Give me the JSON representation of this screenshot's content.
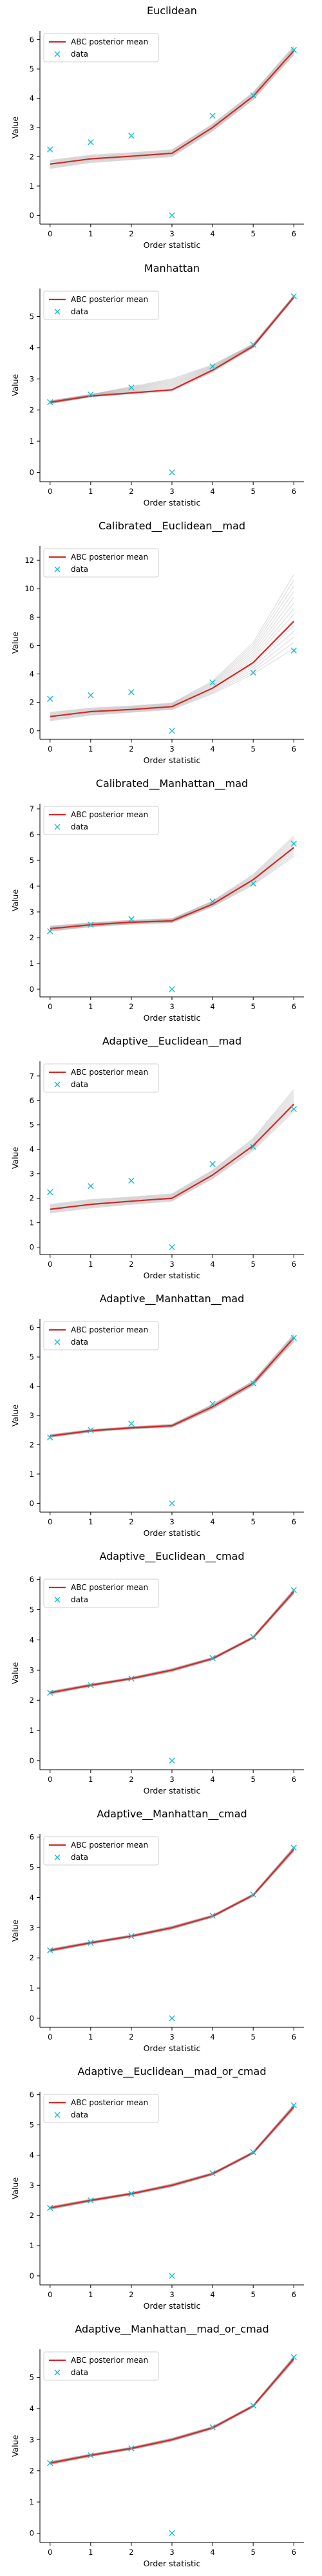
{
  "colors": {
    "posterior": "#d62728",
    "data": "#17becf",
    "samples": "#7f7f7f"
  },
  "legend": {
    "posterior_label": "ABC posterior mean",
    "data_label": "data"
  },
  "chart_data": [
    {
      "type": "line",
      "title": "Euclidean",
      "xlabel": "Order statistic",
      "ylabel": "Value",
      "x": [
        0,
        1,
        2,
        3,
        4,
        5,
        6
      ],
      "xticks": [
        "0",
        "1",
        "2",
        "3",
        "4",
        "5",
        "6"
      ],
      "yticks": [
        "0",
        "1",
        "2",
        "3",
        "4",
        "5",
        "6"
      ],
      "ylim": [
        -0.3,
        6.3
      ],
      "legend_position": "top-left",
      "grid": false,
      "series": [
        {
          "name": "ABC posterior mean",
          "kind": "line",
          "values": [
            1.75,
            1.93,
            2.02,
            2.12,
            3.0,
            4.07,
            5.62
          ]
        },
        {
          "name": "data",
          "kind": "marker",
          "values": [
            2.25,
            2.5,
            2.72,
            0.0,
            3.4,
            4.1,
            5.65
          ]
        }
      ],
      "band": {
        "lower": [
          1.6,
          1.8,
          1.9,
          2.0,
          2.88,
          3.95,
          5.48
        ],
        "upper": [
          1.88,
          2.06,
          2.14,
          2.24,
          3.12,
          4.2,
          5.78
        ]
      }
    },
    {
      "type": "line",
      "title": "Manhattan",
      "xlabel": "Order statistic",
      "ylabel": "Value",
      "x": [
        0,
        1,
        2,
        3,
        4,
        5,
        6
      ],
      "xticks": [
        "0",
        "1",
        "2",
        "3",
        "4",
        "5",
        "6"
      ],
      "yticks": [
        "0",
        "1",
        "2",
        "3",
        "4",
        "5"
      ],
      "ylim": [
        -0.3,
        5.9
      ],
      "legend_position": "top-left",
      "grid": false,
      "series": [
        {
          "name": "ABC posterior mean",
          "kind": "line",
          "values": [
            2.25,
            2.45,
            2.55,
            2.65,
            3.28,
            4.05,
            5.62
          ]
        },
        {
          "name": "data",
          "kind": "marker",
          "values": [
            2.25,
            2.5,
            2.72,
            0.0,
            3.4,
            4.1,
            5.65
          ]
        }
      ],
      "band": {
        "lower": [
          2.2,
          2.42,
          2.52,
          2.6,
          3.22,
          4.0,
          5.58
        ],
        "upper": [
          2.3,
          2.5,
          2.75,
          3.0,
          3.45,
          4.12,
          5.68
        ]
      }
    },
    {
      "type": "line",
      "title": "Calibrated__Euclidean__mad",
      "xlabel": "Order statistic",
      "ylabel": "Value",
      "x": [
        0,
        1,
        2,
        3,
        4,
        5,
        6
      ],
      "xticks": [
        "0",
        "1",
        "2",
        "3",
        "4",
        "5",
        "6"
      ],
      "yticks": [
        "0",
        "2",
        "4",
        "6",
        "8",
        "10",
        "12"
      ],
      "ylim": [
        -0.6,
        13.0
      ],
      "legend_position": "top-left",
      "grid": false,
      "series": [
        {
          "name": "ABC posterior mean",
          "kind": "line",
          "values": [
            1.0,
            1.35,
            1.5,
            1.7,
            3.0,
            4.8,
            7.7
          ]
        },
        {
          "name": "data",
          "kind": "marker",
          "values": [
            2.25,
            2.5,
            2.72,
            0.0,
            3.4,
            4.1,
            5.65
          ]
        }
      ],
      "band": {
        "lower": [
          0.7,
          1.1,
          1.3,
          1.5,
          2.6,
          4.0,
          5.8
        ],
        "upper": [
          1.3,
          1.6,
          1.75,
          1.95,
          3.5,
          6.2,
          11.0
        ]
      }
    },
    {
      "type": "line",
      "title": "Calibrated__Manhattan__mad",
      "xlabel": "Order statistic",
      "ylabel": "Value",
      "x": [
        0,
        1,
        2,
        3,
        4,
        5,
        6
      ],
      "xticks": [
        "0",
        "1",
        "2",
        "3",
        "4",
        "5",
        "6"
      ],
      "yticks": [
        "0",
        "1",
        "2",
        "3",
        "4",
        "5",
        "6",
        "7"
      ],
      "ylim": [
        -0.3,
        7.2
      ],
      "legend_position": "top-left",
      "grid": false,
      "series": [
        {
          "name": "ABC posterior mean",
          "kind": "line",
          "values": [
            2.35,
            2.5,
            2.6,
            2.65,
            3.3,
            4.25,
            5.5
          ]
        },
        {
          "name": "data",
          "kind": "marker",
          "values": [
            2.25,
            2.5,
            2.72,
            0.0,
            3.4,
            4.1,
            5.65
          ]
        }
      ],
      "band": {
        "lower": [
          2.25,
          2.42,
          2.52,
          2.58,
          3.2,
          4.05,
          5.15
        ],
        "upper": [
          2.45,
          2.58,
          2.68,
          2.74,
          3.42,
          4.45,
          5.95
        ]
      }
    },
    {
      "type": "line",
      "title": "Adaptive__Euclidean__mad",
      "xlabel": "Order statistic",
      "ylabel": "Value",
      "x": [
        0,
        1,
        2,
        3,
        4,
        5,
        6
      ],
      "xticks": [
        "0",
        "1",
        "2",
        "3",
        "4",
        "5",
        "6"
      ],
      "yticks": [
        "0",
        "1",
        "2",
        "3",
        "4",
        "5",
        "6",
        "7"
      ],
      "ylim": [
        -0.3,
        7.6
      ],
      "legend_position": "top-left",
      "grid": false,
      "series": [
        {
          "name": "ABC posterior mean",
          "kind": "line",
          "values": [
            1.55,
            1.75,
            1.88,
            2.0,
            2.95,
            4.15,
            5.85
          ]
        },
        {
          "name": "data",
          "kind": "marker",
          "values": [
            2.25,
            2.5,
            2.72,
            0.0,
            3.4,
            4.1,
            5.65
          ]
        }
      ],
      "band": {
        "lower": [
          1.4,
          1.6,
          1.75,
          1.88,
          2.8,
          3.95,
          5.55
        ],
        "upper": [
          1.75,
          1.95,
          2.05,
          2.18,
          3.15,
          4.45,
          6.45
        ]
      }
    },
    {
      "type": "line",
      "title": "Adaptive__Manhattan__mad",
      "xlabel": "Order statistic",
      "ylabel": "Value",
      "x": [
        0,
        1,
        2,
        3,
        4,
        5,
        6
      ],
      "xticks": [
        "0",
        "1",
        "2",
        "3",
        "4",
        "5",
        "6"
      ],
      "yticks": [
        "0",
        "1",
        "2",
        "3",
        "4",
        "5",
        "6"
      ],
      "ylim": [
        -0.3,
        6.3
      ],
      "legend_position": "top-left",
      "grid": false,
      "series": [
        {
          "name": "ABC posterior mean",
          "kind": "line",
          "values": [
            2.3,
            2.48,
            2.58,
            2.65,
            3.3,
            4.1,
            5.65
          ]
        },
        {
          "name": "data",
          "kind": "marker",
          "values": [
            2.25,
            2.5,
            2.72,
            0.0,
            3.4,
            4.1,
            5.65
          ]
        }
      ],
      "band": {
        "lower": [
          2.25,
          2.44,
          2.54,
          2.6,
          3.22,
          4.02,
          5.52
        ],
        "upper": [
          2.35,
          2.52,
          2.62,
          2.7,
          3.38,
          4.18,
          5.78
        ]
      }
    },
    {
      "type": "line",
      "title": "Adaptive__Euclidean__cmad",
      "xlabel": "Order statistic",
      "ylabel": "Value",
      "x": [
        0,
        1,
        2,
        3,
        4,
        5,
        6
      ],
      "xticks": [
        "0",
        "1",
        "2",
        "3",
        "4",
        "5",
        "6"
      ],
      "yticks": [
        "0",
        "1",
        "2",
        "3",
        "4",
        "5",
        "6"
      ],
      "ylim": [
        -0.3,
        6.1
      ],
      "legend_position": "top-left",
      "grid": false,
      "series": [
        {
          "name": "ABC posterior mean",
          "kind": "line",
          "values": [
            2.25,
            2.5,
            2.72,
            3.0,
            3.38,
            4.08,
            5.6
          ]
        },
        {
          "name": "data",
          "kind": "marker",
          "values": [
            2.25,
            2.5,
            2.72,
            0.0,
            3.4,
            4.1,
            5.65
          ]
        }
      ],
      "band": {
        "lower": [
          2.2,
          2.46,
          2.68,
          2.95,
          3.34,
          4.04,
          5.52
        ],
        "upper": [
          2.3,
          2.54,
          2.76,
          3.05,
          3.42,
          4.12,
          5.68
        ]
      }
    },
    {
      "type": "line",
      "title": "Adaptive__Manhattan__cmad",
      "xlabel": "Order statistic",
      "ylabel": "Value",
      "x": [
        0,
        1,
        2,
        3,
        4,
        5,
        6
      ],
      "xticks": [
        "0",
        "1",
        "2",
        "3",
        "4",
        "5",
        "6"
      ],
      "yticks": [
        "0",
        "1",
        "2",
        "3",
        "4",
        "5",
        "6"
      ],
      "ylim": [
        -0.3,
        6.1
      ],
      "legend_position": "top-left",
      "grid": false,
      "series": [
        {
          "name": "ABC posterior mean",
          "kind": "line",
          "values": [
            2.25,
            2.5,
            2.72,
            3.0,
            3.38,
            4.08,
            5.6
          ]
        },
        {
          "name": "data",
          "kind": "marker",
          "values": [
            2.25,
            2.5,
            2.72,
            0.0,
            3.4,
            4.1,
            5.65
          ]
        }
      ],
      "band": {
        "lower": [
          2.2,
          2.46,
          2.68,
          2.95,
          3.34,
          4.04,
          5.52
        ],
        "upper": [
          2.3,
          2.54,
          2.76,
          3.05,
          3.42,
          4.12,
          5.68
        ]
      }
    },
    {
      "type": "line",
      "title": "Adaptive__Euclidean__mad_or_cmad",
      "xlabel": "Order statistic",
      "ylabel": "Value",
      "x": [
        0,
        1,
        2,
        3,
        4,
        5,
        6
      ],
      "xticks": [
        "0",
        "1",
        "2",
        "3",
        "4",
        "5",
        "6"
      ],
      "yticks": [
        "0",
        "1",
        "2",
        "3",
        "4",
        "5",
        "6"
      ],
      "ylim": [
        -0.3,
        6.1
      ],
      "legend_position": "top-left",
      "grid": false,
      "series": [
        {
          "name": "ABC posterior mean",
          "kind": "line",
          "values": [
            2.25,
            2.5,
            2.72,
            3.0,
            3.38,
            4.08,
            5.6
          ]
        },
        {
          "name": "data",
          "kind": "marker",
          "values": [
            2.25,
            2.5,
            2.72,
            0.0,
            3.4,
            4.1,
            5.65
          ]
        }
      ],
      "band": {
        "lower": [
          2.2,
          2.46,
          2.68,
          2.95,
          3.34,
          4.04,
          5.52
        ],
        "upper": [
          2.3,
          2.54,
          2.76,
          3.05,
          3.42,
          4.12,
          5.68
        ]
      }
    },
    {
      "type": "line",
      "title": "Adaptive__Manhattan__mad_or_cmad",
      "xlabel": "Order statistic",
      "ylabel": "Value",
      "x": [
        0,
        1,
        2,
        3,
        4,
        5,
        6
      ],
      "xticks": [
        "0",
        "1",
        "2",
        "3",
        "4",
        "5",
        "6"
      ],
      "yticks": [
        "0",
        "1",
        "2",
        "3",
        "4",
        "5"
      ],
      "ylim": [
        -0.3,
        5.9
      ],
      "legend_position": "top-left",
      "grid": false,
      "series": [
        {
          "name": "ABC posterior mean",
          "kind": "line",
          "values": [
            2.25,
            2.5,
            2.72,
            3.0,
            3.38,
            4.08,
            5.6
          ]
        },
        {
          "name": "data",
          "kind": "marker",
          "values": [
            2.25,
            2.5,
            2.72,
            0.0,
            3.4,
            4.1,
            5.65
          ]
        }
      ],
      "band": {
        "lower": [
          2.2,
          2.46,
          2.68,
          2.95,
          3.34,
          4.04,
          5.52
        ],
        "upper": [
          2.3,
          2.54,
          2.76,
          3.05,
          3.42,
          4.12,
          5.68
        ]
      }
    }
  ]
}
